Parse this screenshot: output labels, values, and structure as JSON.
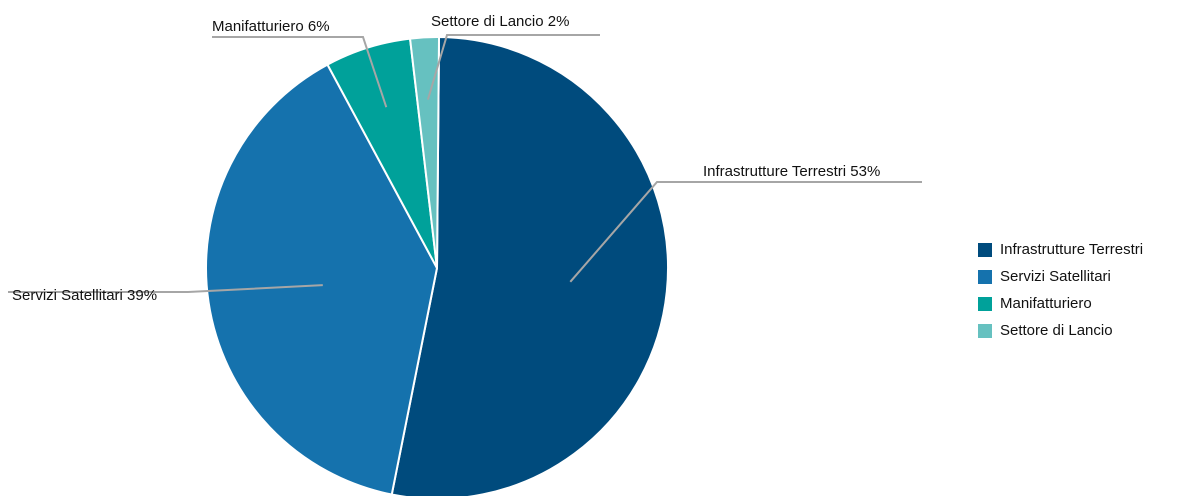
{
  "chart_data": {
    "type": "pie",
    "title": "",
    "slices": [
      {
        "label": "Infrastrutture Terrestri",
        "value": 53,
        "color": "#004b7d",
        "display": "Infrastrutture Terrestri 53%"
      },
      {
        "label": "Servizi Satellitari",
        "value": 39,
        "color": "#1572ad",
        "display": "Servizi Satellitari 39%"
      },
      {
        "label": "Manifatturiero",
        "value": 6,
        "color": "#00a19a",
        "display": "Manifatturiero 6%"
      },
      {
        "label": "Settore di Lancio",
        "value": 2,
        "color": "#66c1c0",
        "display": "Settore di Lancio 2%"
      }
    ],
    "legend_position": "right"
  }
}
